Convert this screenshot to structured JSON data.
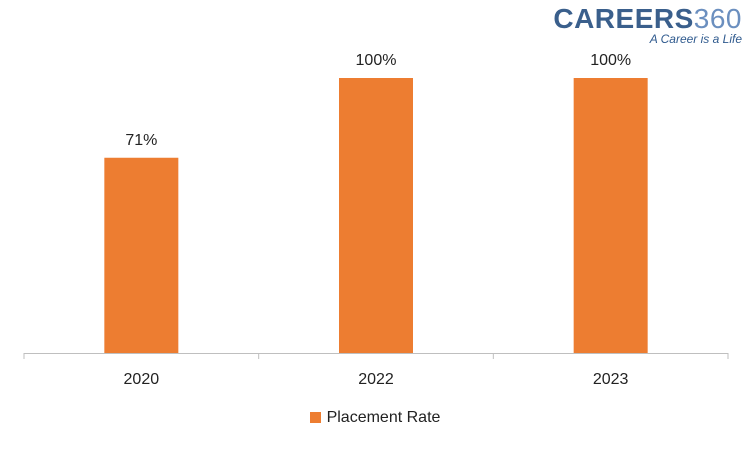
{
  "brand": {
    "name": "CAREERS",
    "number": "360",
    "tagline": "A Career is a Life"
  },
  "chart_data": {
    "type": "bar",
    "categories": [
      "2020",
      "2022",
      "2023"
    ],
    "series": [
      {
        "name": "Placement Rate",
        "values": [
          71,
          100,
          100
        ],
        "labels": [
          "71%",
          "100%",
          "100%"
        ],
        "color": "#ED7D31"
      }
    ],
    "ylim": [
      0,
      100
    ],
    "grid": false,
    "legend_position": "bottom"
  }
}
